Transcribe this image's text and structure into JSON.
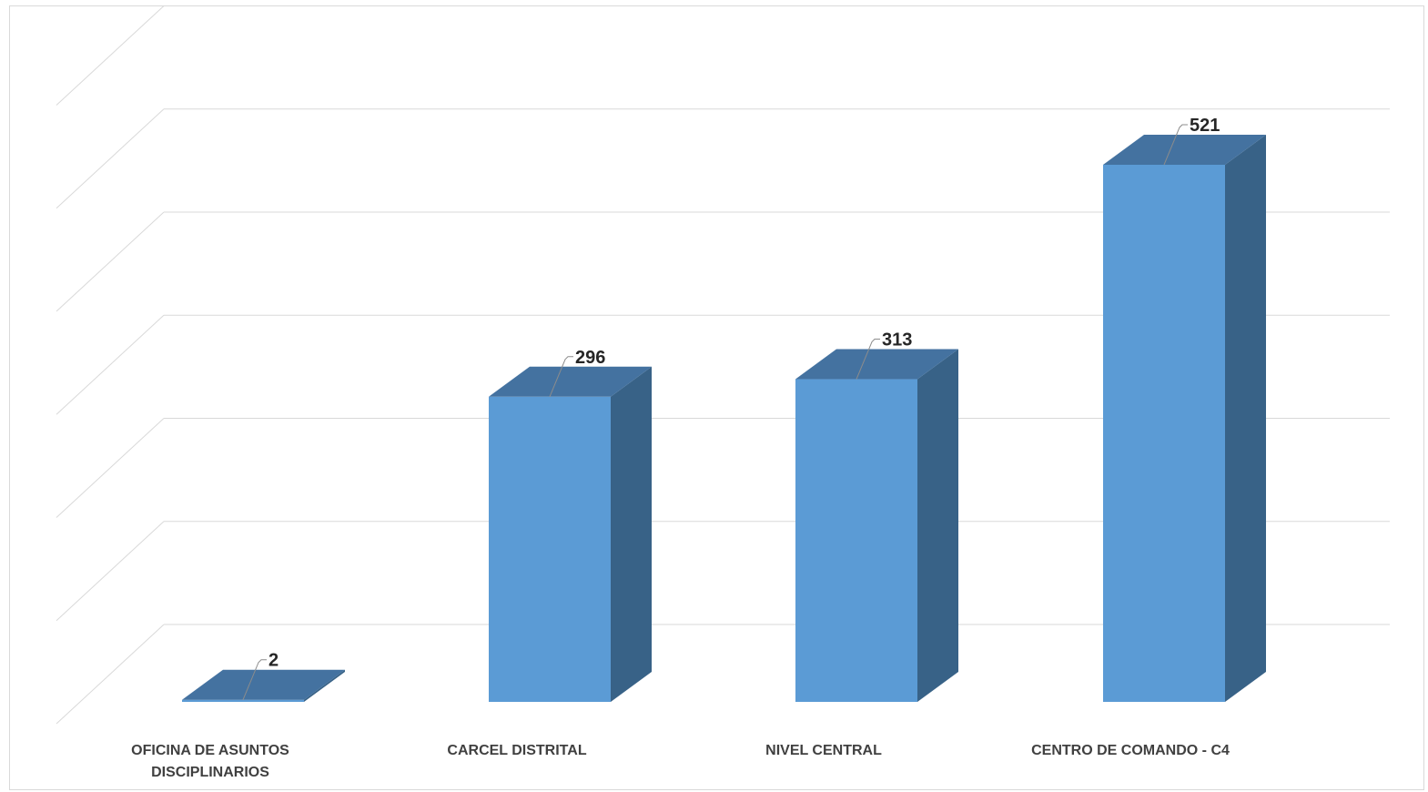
{
  "chart_data": {
    "type": "bar",
    "style": "3d-column",
    "categories": [
      "OFICINA DE ASUNTOS DISCIPLINARIOS",
      "CARCEL DISTRITAL",
      "NIVEL CENTRAL",
      "CENTRO DE COMANDO - C4"
    ],
    "values": [
      2,
      296,
      313,
      521
    ],
    "data_labels": [
      "2",
      "296",
      "313",
      "521"
    ],
    "ylim": [
      0,
      600
    ],
    "grid": true,
    "colors": {
      "front": "#5b9bd5",
      "top": "#4472a0",
      "side": "#386287",
      "grid": "#d9d9d9",
      "leader": "#8c8c8c"
    }
  }
}
